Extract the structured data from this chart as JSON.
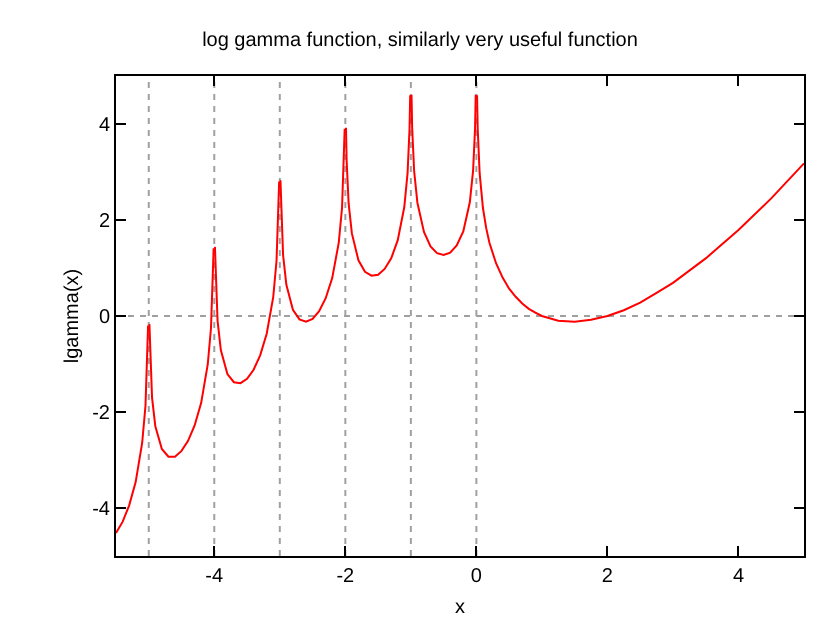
{
  "chart_data": {
    "type": "line",
    "title": "log gamma function, similarly very useful function",
    "xlabel": "x",
    "ylabel": "lgamma(x)",
    "x": [
      -5.5,
      -5.4,
      -5.3,
      -5.2,
      -5.1,
      -5.05,
      -5.01,
      -5,
      -4.99,
      -4.95,
      -4.9,
      -4.8,
      -4.7,
      -4.6,
      -4.5,
      -4.4,
      -4.3,
      -4.2,
      -4.1,
      -4.05,
      -4.01,
      -4,
      -3.99,
      -3.95,
      -3.9,
      -3.8,
      -3.7,
      -3.6,
      -3.5,
      -3.4,
      -3.3,
      -3.2,
      -3.1,
      -3.05,
      -3.01,
      -3,
      -2.99,
      -2.95,
      -2.9,
      -2.8,
      -2.7,
      -2.6,
      -2.5,
      -2.4,
      -2.3,
      -2.2,
      -2.1,
      -2.05,
      -2.01,
      -2,
      -1.99,
      -1.98,
      -1.95,
      -1.9,
      -1.8,
      -1.7,
      -1.6,
      -1.5,
      -1.4,
      -1.3,
      -1.2,
      -1.1,
      -1.05,
      -1.02,
      -1.01,
      -1,
      -0.99,
      -0.98,
      -0.95,
      -0.9,
      -0.8,
      -0.7,
      -0.6,
      -0.5,
      -0.4,
      -0.3,
      -0.2,
      -0.1,
      -0.05,
      -0.02,
      -0.01,
      0,
      0.01,
      0.02,
      0.05,
      0.1,
      0.15,
      0.2,
      0.3,
      0.4,
      0.5,
      0.6,
      0.7,
      0.8,
      0.9,
      1,
      1.25,
      1.5,
      1.75,
      2,
      2.25,
      2.5,
      2.75,
      3,
      3.5,
      4,
      4.5,
      5
    ],
    "series": [
      {
        "color": "#ff0000",
        "values": [
          -4.52,
          -4.29,
          -3.95,
          -3.46,
          -2.64,
          -1.87,
          -0.2,
          null,
          -0.17,
          -1.7,
          -2.3,
          -2.77,
          -2.93,
          -2.93,
          -2.81,
          -2.6,
          -2.28,
          -1.81,
          -1.01,
          -0.25,
          1.41,
          null,
          1.44,
          -0.1,
          -0.71,
          -1.21,
          -1.38,
          -1.4,
          -1.31,
          -1.12,
          -0.82,
          -0.37,
          0.4,
          1.15,
          2.8,
          null,
          2.83,
          1.27,
          0.65,
          0.13,
          -0.07,
          -0.12,
          -0.06,
          0.1,
          0.37,
          0.79,
          1.53,
          2.26,
          3.9,
          null,
          3.92,
          3.24,
          2.35,
          1.72,
          1.16,
          0.92,
          0.84,
          0.86,
          0.98,
          1.2,
          1.58,
          2.27,
          2.98,
          3.9,
          4.6,
          null,
          4.61,
          3.92,
          3.02,
          2.36,
          1.75,
          1.45,
          1.31,
          1.27,
          1.32,
          1.47,
          1.76,
          2.37,
          3.03,
          3.92,
          4.61,
          null,
          4.6,
          3.9,
          2.97,
          2.25,
          1.83,
          1.52,
          1.1,
          0.8,
          0.57,
          0.4,
          0.26,
          0.15,
          0.07,
          0.0,
          -0.1,
          -0.12,
          -0.08,
          0.0,
          0.12,
          0.28,
          0.48,
          0.69,
          1.2,
          1.79,
          2.45,
          3.18
        ]
      }
    ],
    "xlim": [
      -5.5,
      5
    ],
    "ylim": [
      -5,
      5
    ],
    "xticks": [
      -4,
      -2,
      0,
      2,
      4
    ],
    "yticks": [
      -4,
      -2,
      0,
      2,
      4
    ],
    "ref_lines": [
      {
        "axis": "y",
        "value": 0,
        "color": "#a0a0a0",
        "line_style": "dotted"
      },
      {
        "axis": "x",
        "value": -5,
        "color": "#a0a0a0",
        "line_style": "dotted"
      },
      {
        "axis": "x",
        "value": -4,
        "color": "#a0a0a0",
        "line_style": "dotted"
      },
      {
        "axis": "x",
        "value": -3,
        "color": "#a0a0a0",
        "line_style": "dotted"
      },
      {
        "axis": "x",
        "value": -2,
        "color": "#a0a0a0",
        "line_style": "dotted"
      },
      {
        "axis": "x",
        "value": -1,
        "color": "#a0a0a0",
        "line_style": "dotted"
      },
      {
        "axis": "x",
        "value": 0,
        "color": "#a0a0a0",
        "line_style": "dotted"
      }
    ],
    "grid": false
  }
}
